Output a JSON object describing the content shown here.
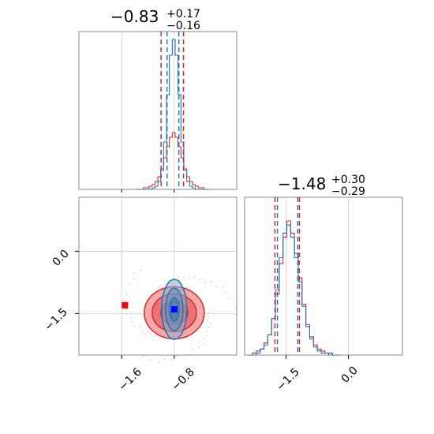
{
  "chart_data": {
    "type": "corner",
    "colors": {
      "red": "#d62728",
      "blue": "#1f77b4",
      "marker_blue": "#0000ff",
      "marker_red": "#ff0000",
      "grid": "#cccccc",
      "frame": "#888888"
    },
    "titles": [
      {
        "value": "−0.83",
        "plus": "+0.17",
        "minus": "−0.16"
      },
      {
        "value": "−1.48",
        "plus": "+0.30",
        "minus": "−0.29"
      }
    ],
    "x_ticks": [
      "−1.6",
      "−0.8"
    ],
    "x_ticks_right": [
      "−1.5",
      "0.0"
    ],
    "y_ticks": [
      "0.0",
      "−1.5"
    ],
    "param1": {
      "range": [
        -2.25,
        0.15
      ],
      "grid": [
        -1.6,
        -0.8
      ],
      "quantile_lines": {
        "red": [
          -1.0,
          -0.66
        ],
        "blue": [
          -0.91,
          -0.73
        ]
      },
      "hist_red": [
        0,
        0,
        0,
        1,
        1,
        2,
        3,
        5,
        8,
        13,
        20,
        27,
        33,
        36,
        33,
        27,
        20,
        13,
        8,
        5,
        3,
        2,
        1,
        1,
        0,
        0
      ],
      "hist_blue": [
        0,
        0,
        0,
        0,
        0,
        0,
        1,
        2,
        5,
        12,
        30,
        60,
        85,
        95,
        85,
        60,
        30,
        12,
        5,
        2,
        1,
        0,
        0,
        0,
        0,
        0
      ],
      "hist_bins": [
        -1.4,
        -0.26
      ]
    },
    "param2": {
      "range": [
        -2.5,
        1.3
      ],
      "grid": [
        -1.5,
        0.0
      ],
      "quantile_lines": {
        "red": [
          -1.77,
          -1.18
        ],
        "blue": [
          -1.71,
          -1.22
        ]
      },
      "hist_red": [
        0,
        1,
        2,
        3,
        6,
        10,
        18,
        30,
        45,
        58,
        66,
        60,
        50,
        38,
        25,
        15,
        9,
        5,
        3,
        2,
        1,
        1,
        0,
        0
      ],
      "hist_blue": [
        0,
        0,
        1,
        3,
        5,
        10,
        18,
        32,
        48,
        60,
        64,
        58,
        48,
        36,
        24,
        14,
        8,
        4,
        2,
        1,
        1,
        0,
        0,
        0
      ],
      "hist_bins": [
        -2.4,
        -0.2
      ]
    },
    "joint": {
      "red_center": [
        -0.8,
        -1.48
      ],
      "blue_center": [
        -0.8,
        -1.4
      ],
      "red_marker": [
        -1.55,
        -1.3
      ],
      "blue_marker": [
        -0.8,
        -1.4
      ]
    }
  }
}
